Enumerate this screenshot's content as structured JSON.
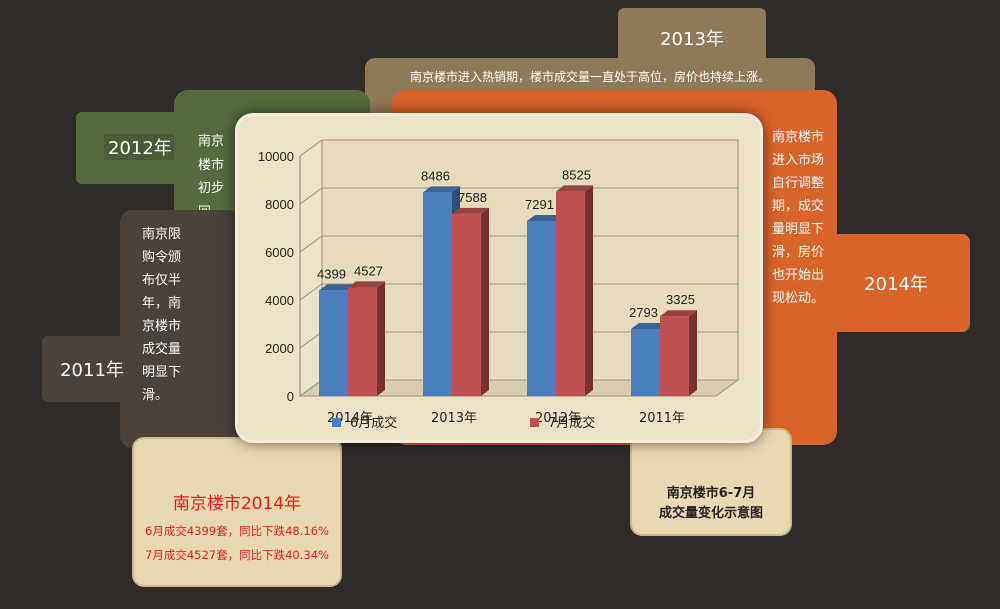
{
  "cards": {
    "y2013": {
      "year": "2013年",
      "text": "南京楼市进入热销期，楼市成交量一直处于高位，房价也持续上涨。"
    },
    "y2014": {
      "year": "2014年",
      "text": "南京楼市进入市场自行调整期，成交量明显下滑，房价也开始出现松动。"
    },
    "y2012": {
      "year": "2012年",
      "text": "南京楼市初步回暖，南京房价和成交双量提升。"
    },
    "y2011": {
      "year": "2011年",
      "text": "南京限购令颁布仅半年，南京楼市成交量明显下滑。"
    }
  },
  "summary": {
    "title": "南京楼市2014年",
    "line1": "6月成交4399套，同比下跌48.16%",
    "line2": "7月成交4527套，同比下跌40.34%"
  },
  "caption": {
    "line1": "南京楼市6-7月",
    "line2": "成交量变化示意图"
  },
  "colors": {
    "series1": "#4a7ebf",
    "series2": "#c0504d",
    "background": "#2e2b29",
    "panel": "#ece2c6"
  },
  "chart_data": {
    "type": "bar",
    "categories": [
      "2014年",
      "2013年",
      "2012年",
      "2011年"
    ],
    "series": [
      {
        "name": "6月成交",
        "values": [
          4399,
          8486,
          7291,
          2793
        ]
      },
      {
        "name": "7月成交",
        "values": [
          4527,
          7588,
          8525,
          3325
        ]
      }
    ],
    "ylim": [
      0,
      10000
    ],
    "yticks": [
      0,
      2000,
      4000,
      6000,
      8000,
      10000
    ],
    "grid": true,
    "legend": "bottom",
    "three_d": true
  }
}
